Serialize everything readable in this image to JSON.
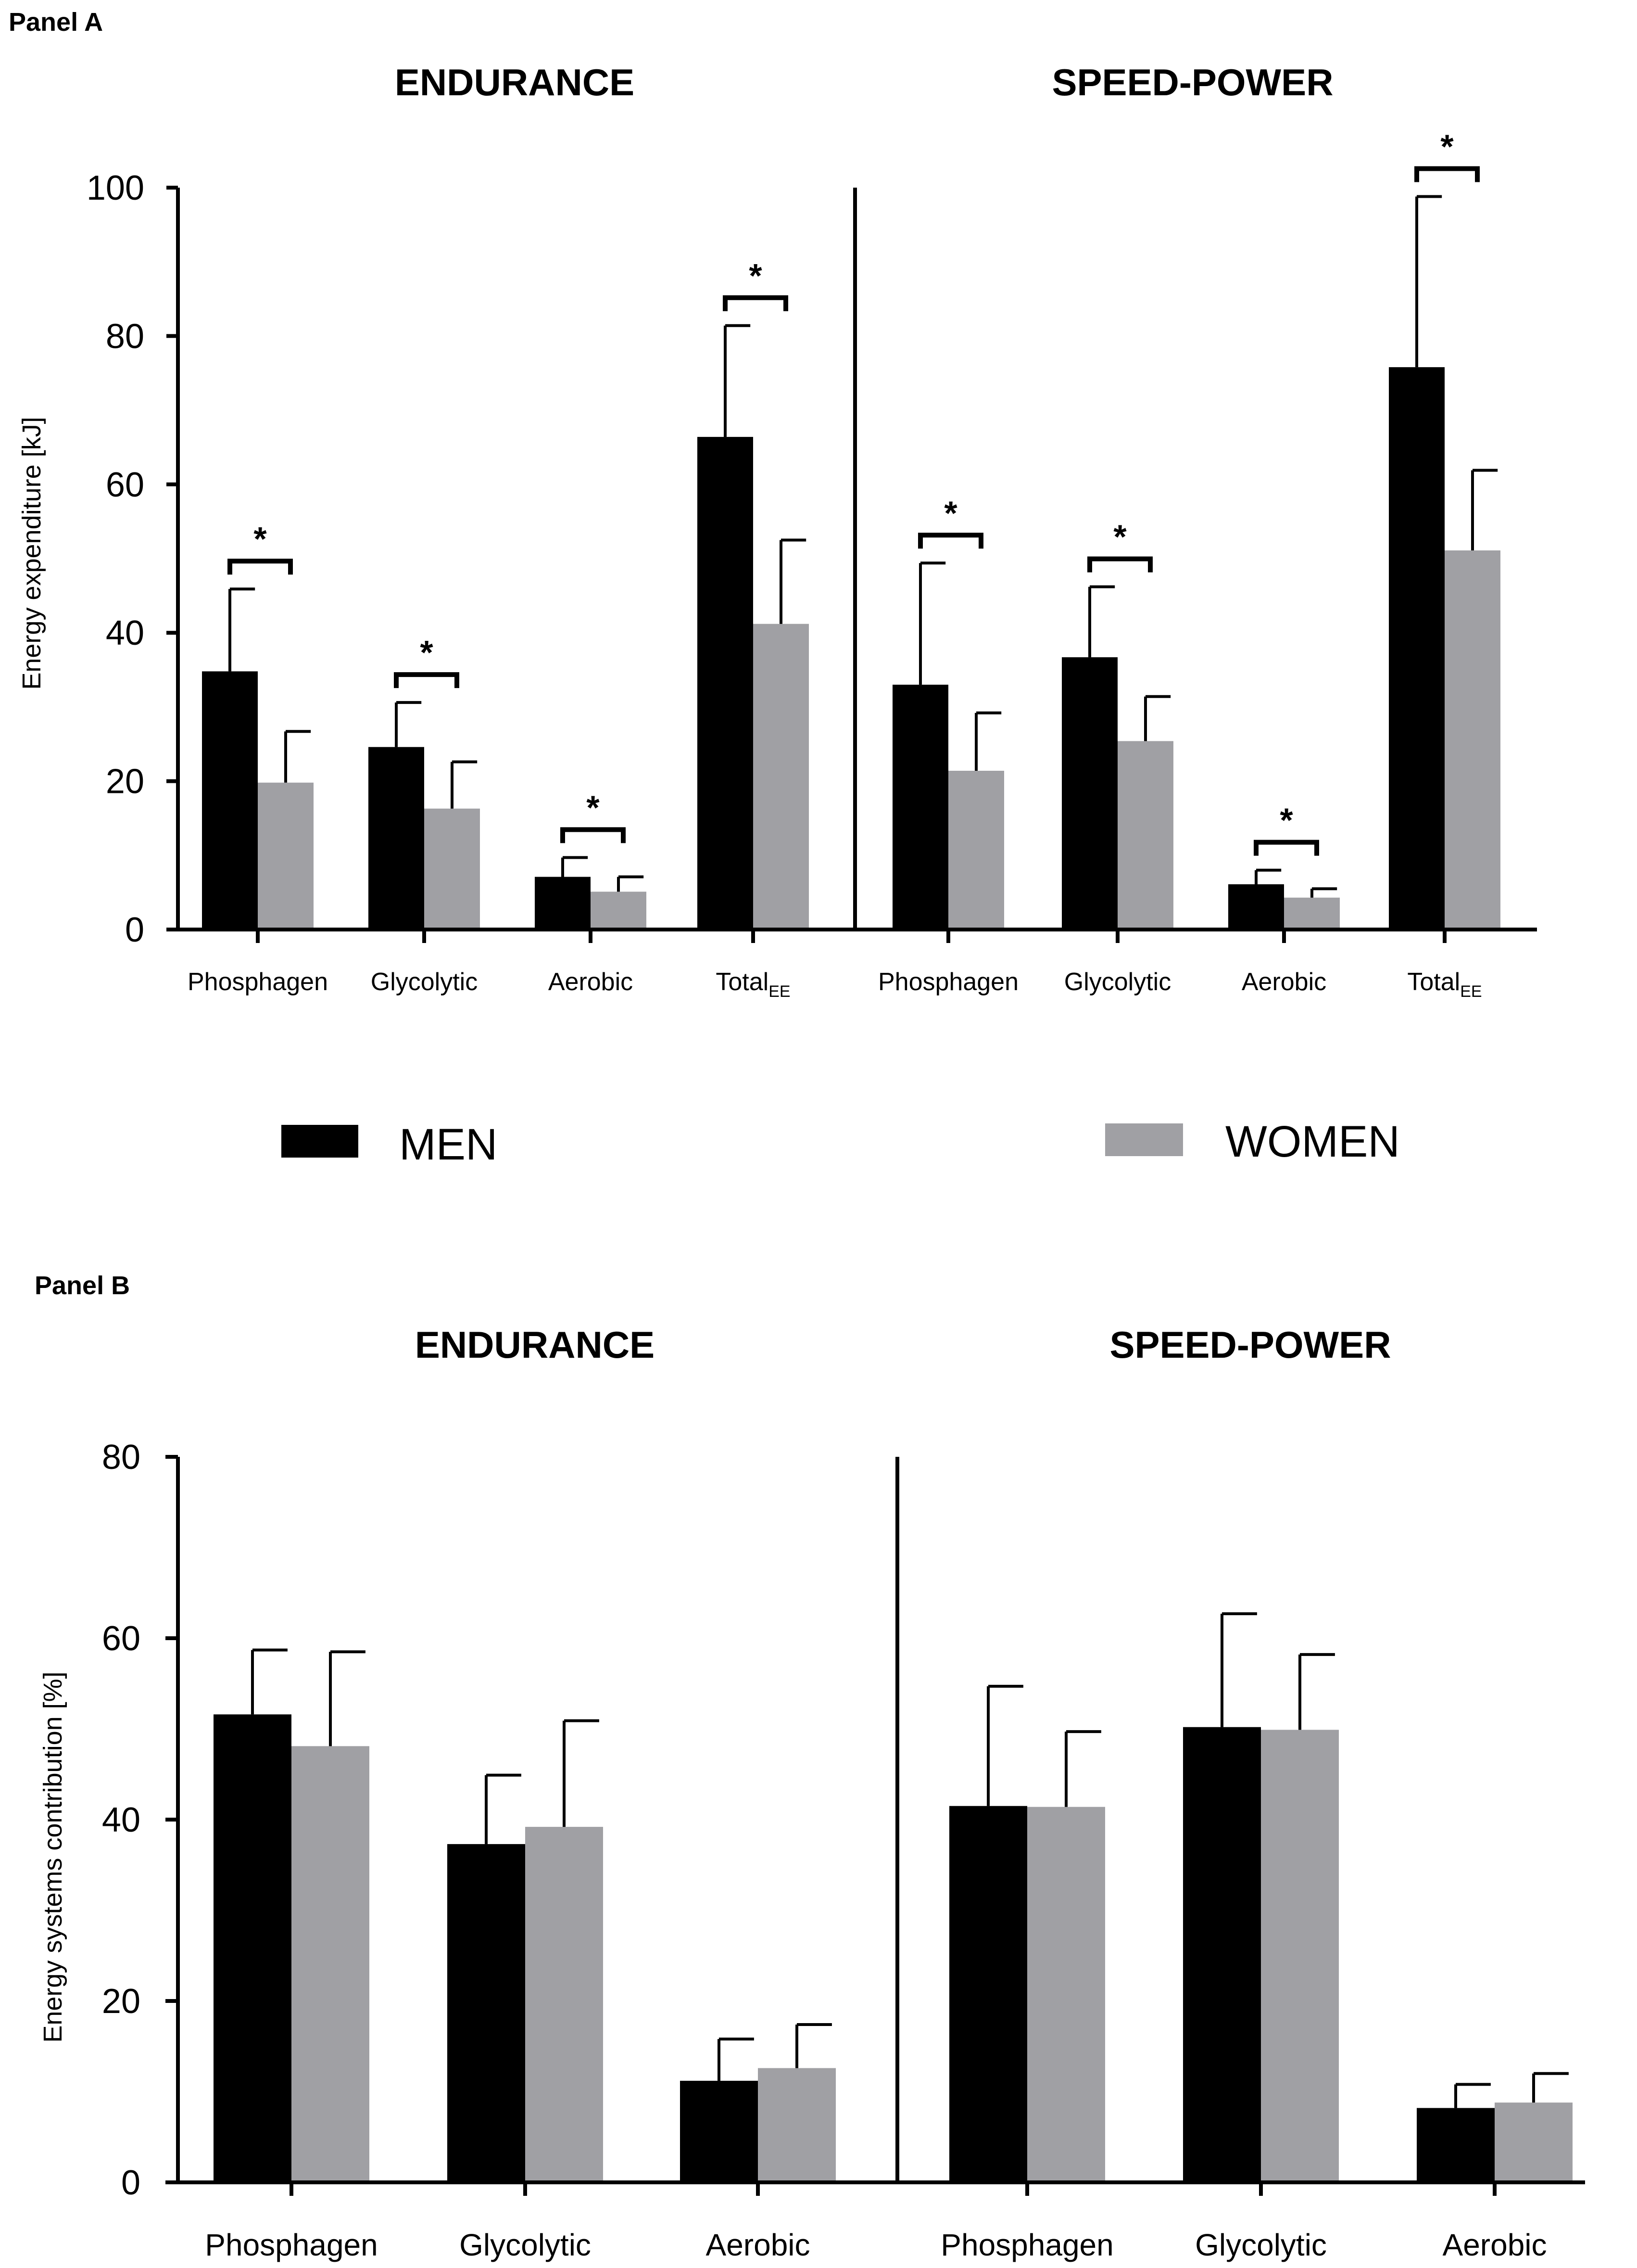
{
  "legend": {
    "men": {
      "label": "MEN",
      "color": "#000000"
    },
    "women": {
      "label": "WOMEN",
      "color": "#a0a0a4"
    }
  },
  "chart_data": [
    {
      "panel": "Panel A",
      "type": "bar",
      "ylabel": "Energy expenditure [kJ]",
      "ylim": [
        0,
        100
      ],
      "yticks": [
        0,
        20,
        40,
        60,
        80,
        100
      ],
      "significance_marker": "*",
      "groups": [
        {
          "title": "ENDURANCE",
          "categories": [
            {
              "label": "Phosphagen",
              "men": 34.8,
              "men_sd": 11.1,
              "women": 19.8,
              "women_sd": 6.9,
              "significant": true
            },
            {
              "label": "Glycolytic",
              "men": 24.6,
              "men_sd": 6.0,
              "women": 16.3,
              "women_sd": 6.3,
              "significant": true
            },
            {
              "label": "Aerobic",
              "men": 7.1,
              "men_sd": 2.6,
              "women": 5.1,
              "women_sd": 2.0,
              "significant": true
            },
            {
              "label": "Total",
              "label_sub": "EE",
              "men": 66.4,
              "men_sd": 15.0,
              "women": 41.2,
              "women_sd": 11.3,
              "significant": true
            }
          ]
        },
        {
          "title": "SPEED-POWER",
          "categories": [
            {
              "label": "Phosphagen",
              "men": 33.0,
              "men_sd": 16.4,
              "women": 21.4,
              "women_sd": 7.8,
              "significant": true
            },
            {
              "label": "Glycolytic",
              "men": 36.7,
              "men_sd": 9.5,
              "women": 25.4,
              "women_sd": 6.0,
              "significant": true
            },
            {
              "label": "Aerobic",
              "men": 6.1,
              "men_sd": 1.9,
              "women": 4.3,
              "women_sd": 1.2,
              "significant": true
            },
            {
              "label": "Total",
              "label_sub": "EE",
              "men": 75.8,
              "men_sd": 23.0,
              "women": 51.1,
              "women_sd": 10.8,
              "significant": true
            }
          ]
        }
      ]
    },
    {
      "panel": "Panel B",
      "type": "bar",
      "ylabel": "Energy systems contribution [%]",
      "ylim": [
        0,
        80
      ],
      "yticks": [
        0,
        20,
        40,
        60,
        80
      ],
      "groups": [
        {
          "title": "ENDURANCE",
          "categories": [
            {
              "label": "Phosphagen",
              "men": 51.6,
              "men_sd": 7.1,
              "women": 48.1,
              "women_sd": 10.4
            },
            {
              "label": "Glycolytic",
              "men": 37.3,
              "men_sd": 7.6,
              "women": 39.2,
              "women_sd": 11.7
            },
            {
              "label": "Aerobic",
              "men": 11.2,
              "men_sd": 4.6,
              "women": 12.6,
              "women_sd": 4.8
            }
          ]
        },
        {
          "title": "SPEED-POWER",
          "categories": [
            {
              "label": "Phosphagen",
              "men": 41.5,
              "men_sd": 13.2,
              "women": 41.4,
              "women_sd": 8.3
            },
            {
              "label": "Glycolytic",
              "men": 50.2,
              "men_sd": 12.5,
              "women": 49.9,
              "women_sd": 8.3
            },
            {
              "label": "Aerobic",
              "men": 8.2,
              "men_sd": 2.6,
              "women": 8.8,
              "women_sd": 3.2
            }
          ]
        }
      ]
    }
  ]
}
